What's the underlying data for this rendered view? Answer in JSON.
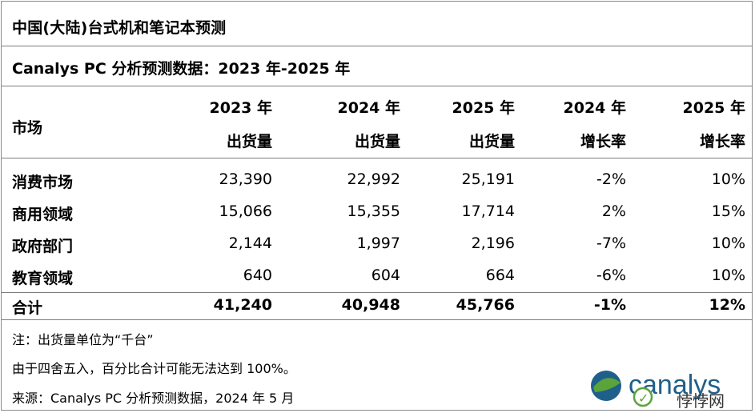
{
  "title": "中国(大陆)台式机和笔记本预测",
  "subtitle": "Canalys PC 分析预测数据：2023 年-2025 年",
  "header": {
    "market": "市场",
    "columns": [
      {
        "line1": "2023 年",
        "line2": "出货量"
      },
      {
        "line1": "2024 年",
        "line2": "出货量"
      },
      {
        "line1": "2025 年",
        "line2": "出货量"
      },
      {
        "line1": "2024 年",
        "line2": "增长率"
      },
      {
        "line1": "2025 年",
        "line2": "增长率"
      }
    ]
  },
  "rows": [
    {
      "name": "消费市场",
      "values": [
        "23,390",
        "22,992",
        "25,191",
        "-2%",
        "10%"
      ]
    },
    {
      "name": "商用领域",
      "values": [
        "15,066",
        "15,355",
        "17,714",
        "2%",
        "15%"
      ]
    },
    {
      "name": "政府部门",
      "values": [
        "2,144",
        "1,997",
        "2,196",
        "-7%",
        "10%"
      ]
    },
    {
      "name": "教育领域",
      "values": [
        "640",
        "604",
        "664",
        "-6%",
        "10%"
      ]
    }
  ],
  "total": {
    "name": "合计",
    "values": [
      "41,240",
      "40,948",
      "45,766",
      "-1%",
      "12%"
    ]
  },
  "notes": [
    "注：出货量单位为“千台”",
    "由于四舍五入，百分比合计可能无法达到 100%。",
    "来源：Canalys PC 分析预测数据，2024 年 5 月"
  ],
  "logo": {
    "text": "canalys",
    "watermark": "悖悖网",
    "brand_color": "#1f5f8b",
    "accent_color": "#5aa43a"
  }
}
